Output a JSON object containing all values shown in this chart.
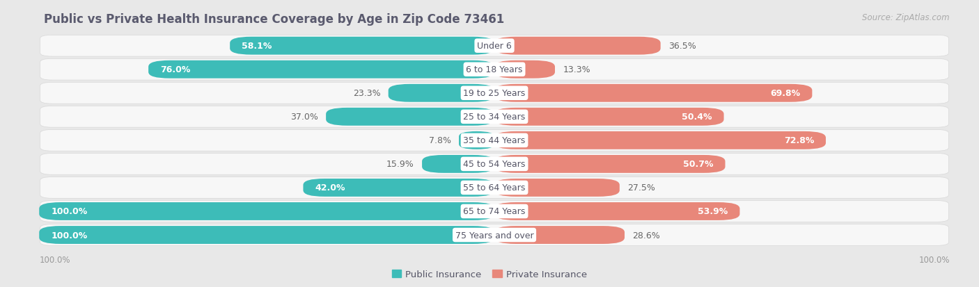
{
  "title": "Public vs Private Health Insurance Coverage by Age in Zip Code 73461",
  "source": "Source: ZipAtlas.com",
  "categories": [
    "Under 6",
    "6 to 18 Years",
    "19 to 25 Years",
    "25 to 34 Years",
    "35 to 44 Years",
    "45 to 54 Years",
    "55 to 64 Years",
    "65 to 74 Years",
    "75 Years and over"
  ],
  "public_values": [
    58.1,
    76.0,
    23.3,
    37.0,
    7.8,
    15.9,
    42.0,
    100.0,
    100.0
  ],
  "private_values": [
    36.5,
    13.3,
    69.8,
    50.4,
    72.8,
    50.7,
    27.5,
    53.9,
    28.6
  ],
  "public_color": "#3DBCB8",
  "private_color": "#E8877A",
  "public_label": "Public Insurance",
  "private_label": "Private Insurance",
  "bg_color": "#e8e8e8",
  "row_bg": "#f5f5f5",
  "max_val": 100.0,
  "title_fontsize": 12,
  "label_fontsize": 9,
  "tick_fontsize": 8.5,
  "source_fontsize": 8.5,
  "val_threshold": 40
}
